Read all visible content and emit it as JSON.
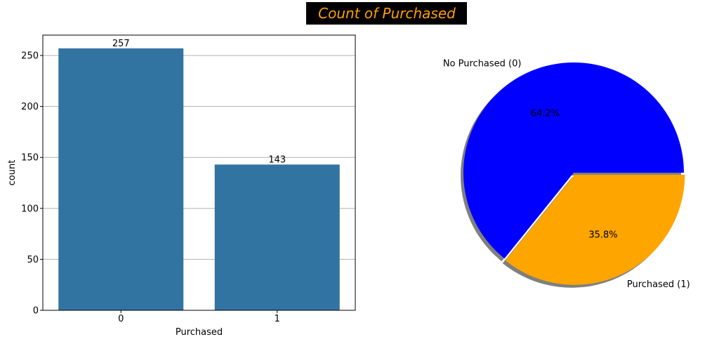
{
  "figure": {
    "suptitle": "Count of Purchased",
    "suptitle_color": "#ff9f00",
    "suptitle_bg": "#000000"
  },
  "chart_data": [
    {
      "type": "bar",
      "categories": [
        "0",
        "1"
      ],
      "values": [
        257,
        143
      ],
      "data_labels": [
        "257",
        "143"
      ],
      "xlabel": "Purchased",
      "ylabel": "count",
      "ylim": [
        0,
        270
      ],
      "yticks": [
        0,
        50,
        100,
        150,
        200,
        250
      ],
      "grid": "y",
      "bar_color": "#3274a1"
    },
    {
      "type": "pie",
      "labels": [
        "No Purchased (0)",
        "Purchased (1)"
      ],
      "values": [
        64.2,
        35.8
      ],
      "pct_labels": [
        "64.2%",
        "35.8%"
      ],
      "colors": [
        "#0000ff",
        "#ffa500"
      ],
      "explode": [
        0,
        0.02
      ],
      "shadow": true
    }
  ]
}
